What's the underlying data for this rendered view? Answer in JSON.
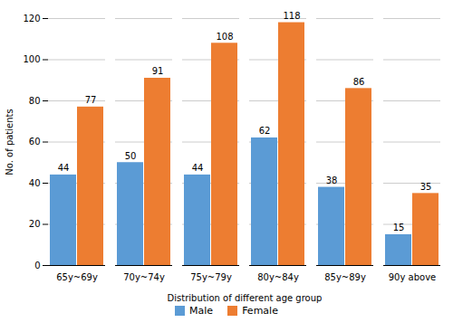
{
  "chart_data": {
    "type": "bar",
    "categories": [
      "65y~69y",
      "70y~74y",
      "75y~79y",
      "80y~84y",
      "85y~89y",
      "90y above"
    ],
    "series": [
      {
        "name": "Male",
        "color": "#5B9BD5",
        "values": [
          44,
          50,
          44,
          62,
          38,
          15
        ]
      },
      {
        "name": "Female",
        "color": "#ED7D31",
        "values": [
          77,
          91,
          108,
          118,
          86,
          35
        ]
      }
    ],
    "xlabel": "Distribution of different age group",
    "ylabel": "No. of patients",
    "ylim": [
      0,
      120
    ],
    "yticks": [
      0,
      20,
      40,
      60,
      80,
      100,
      120
    ],
    "grid": true,
    "legend": "bottom",
    "data_labels": true
  }
}
